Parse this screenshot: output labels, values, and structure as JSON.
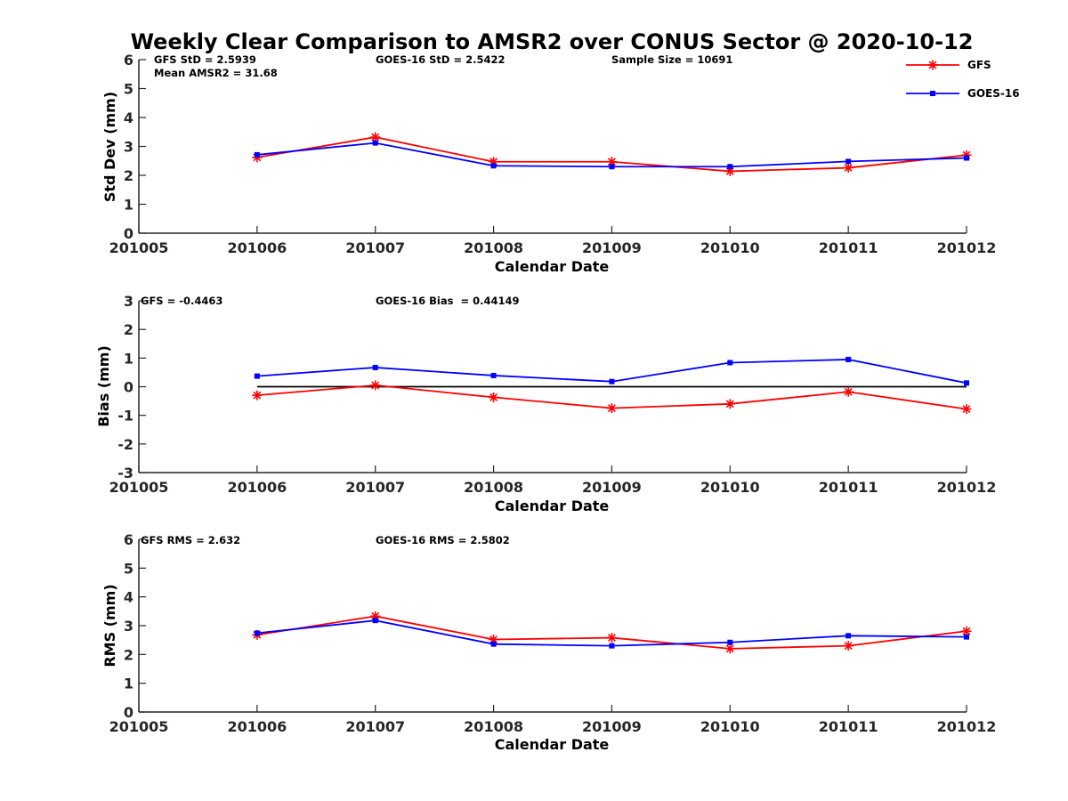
{
  "figure": {
    "title": "Weekly Clear Comparison to AMSR2 over CONUS Sector @ 2020-10-12",
    "legend": {
      "placement": "top-right",
      "entries": [
        {
          "label": "GFS",
          "color": "#ff0000",
          "marker": "asterisk"
        },
        {
          "label": "GOES-16",
          "color": "#0000ff",
          "marker": "square"
        }
      ]
    }
  },
  "chart_data": [
    {
      "type": "line",
      "title": "",
      "xlabel": "Calendar Date",
      "ylabel": "Std Dev (mm)",
      "x": [
        "201006",
        "201007",
        "201008",
        "201009",
        "201010",
        "201011",
        "201012"
      ],
      "xticks": [
        "201005",
        "201006",
        "201007",
        "201008",
        "201009",
        "201010",
        "201011",
        "201012"
      ],
      "yticks": [
        "0",
        "1",
        "2",
        "3",
        "4",
        "5",
        "6"
      ],
      "ylim": [
        0,
        6
      ],
      "grid": false,
      "series": [
        {
          "name": "GFS",
          "color": "#ff0000",
          "marker": "asterisk",
          "values": [
            2.62,
            3.32,
            2.47,
            2.47,
            2.14,
            2.26,
            2.7
          ]
        },
        {
          "name": "GOES-16",
          "color": "#0000ff",
          "marker": "square",
          "values": [
            2.71,
            3.12,
            2.33,
            2.3,
            2.3,
            2.48,
            2.6
          ]
        }
      ],
      "annotations": [
        "GFS StD = 2.5939",
        "Mean AMSR2 = 31.68",
        "GOES-16 StD = 2.5422",
        "Sample Size = 10691"
      ]
    },
    {
      "type": "line",
      "title": "",
      "xlabel": "Calendar Date",
      "ylabel": "Bias (mm)",
      "x": [
        "201006",
        "201007",
        "201008",
        "201009",
        "201010",
        "201011",
        "201012"
      ],
      "xticks": [
        "201005",
        "201006",
        "201007",
        "201008",
        "201009",
        "201010",
        "201011",
        "201012"
      ],
      "yticks": [
        "-3",
        "-2",
        "-1",
        "0",
        "1",
        "2",
        "3"
      ],
      "ylim": [
        -3,
        3
      ],
      "grid": false,
      "zero_line": true,
      "series": [
        {
          "name": "GFS",
          "color": "#ff0000",
          "marker": "asterisk",
          "values": [
            -0.3,
            0.05,
            -0.37,
            -0.75,
            -0.6,
            -0.18,
            -0.78
          ]
        },
        {
          "name": "GOES-16",
          "color": "#0000ff",
          "marker": "square",
          "values": [
            0.37,
            0.67,
            0.39,
            0.18,
            0.84,
            0.95,
            0.13
          ]
        }
      ],
      "annotations": [
        "GFS = -0.4463",
        "GOES-16 Bias  = 0.44149"
      ]
    },
    {
      "type": "line",
      "title": "",
      "xlabel": "Calendar Date",
      "ylabel": "RMS (mm)",
      "x": [
        "201006",
        "201007",
        "201008",
        "201009",
        "201010",
        "201011",
        "201012"
      ],
      "xticks": [
        "201005",
        "201006",
        "201007",
        "201008",
        "201009",
        "201010",
        "201011",
        "201012"
      ],
      "yticks": [
        "0",
        "1",
        "2",
        "3",
        "4",
        "5",
        "6"
      ],
      "ylim": [
        0,
        6
      ],
      "grid": false,
      "series": [
        {
          "name": "GFS",
          "color": "#ff0000",
          "marker": "asterisk",
          "values": [
            2.68,
            3.33,
            2.52,
            2.58,
            2.2,
            2.3,
            2.81
          ]
        },
        {
          "name": "GOES-16",
          "color": "#0000ff",
          "marker": "square",
          "values": [
            2.74,
            3.18,
            2.36,
            2.3,
            2.42,
            2.65,
            2.61
          ]
        }
      ],
      "annotations": [
        "GFS RMS = 2.632",
        "GOES-16 RMS = 2.5802"
      ]
    }
  ]
}
